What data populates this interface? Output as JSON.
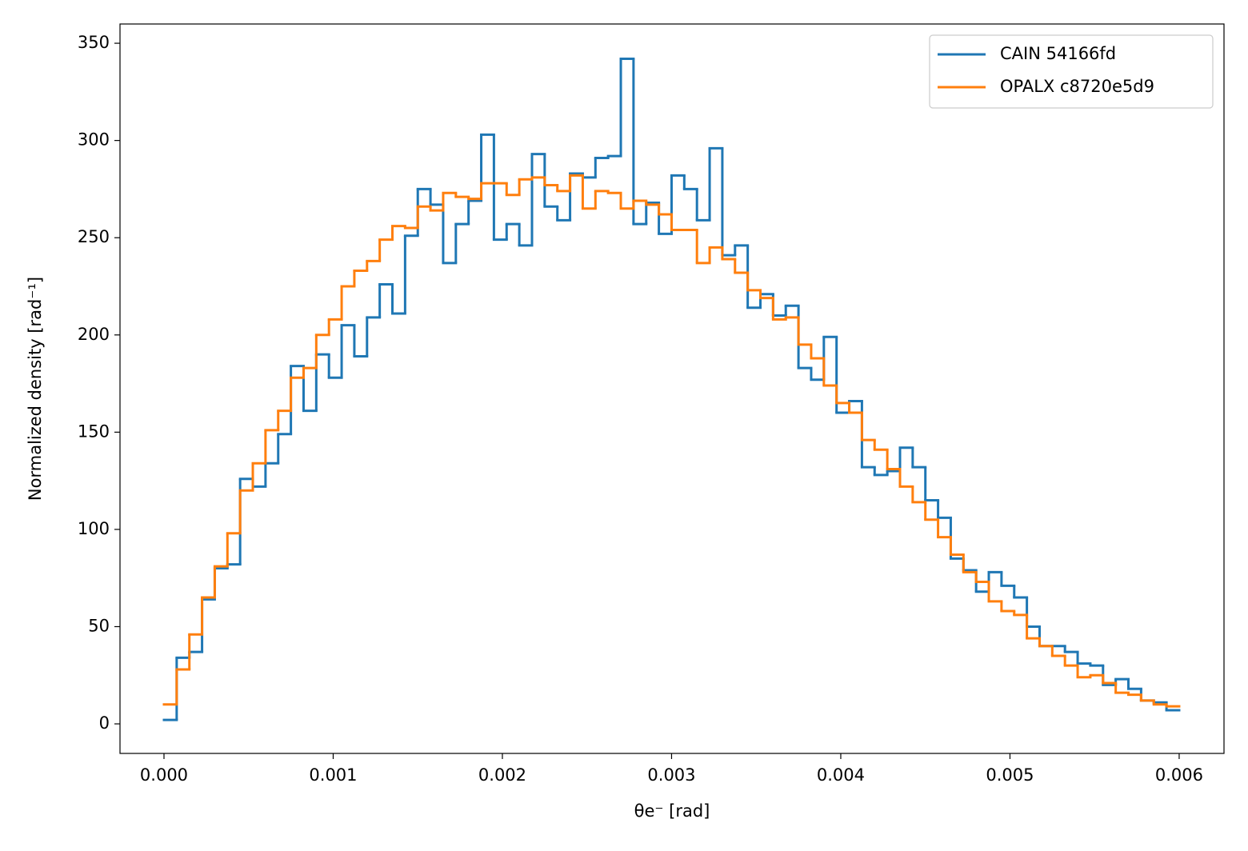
{
  "chart_data": {
    "type": "histogram",
    "x_label": "θe⁻ [rad]",
    "y_label": "Normalized density [rad⁻¹]",
    "bins": [
      0,
      7.5e-05,
      0.00015,
      0.000225,
      0.0003,
      0.000375,
      0.00045,
      0.000525,
      0.0006,
      0.000675,
      0.00075,
      0.000825,
      0.0009,
      0.000975,
      0.00105,
      0.001125,
      0.0012,
      0.001275,
      0.00135,
      0.001425,
      0.0015,
      0.001575,
      0.00165,
      0.001725,
      0.0018,
      0.001875,
      0.00195,
      0.002025,
      0.0021,
      0.002175,
      0.00225,
      0.002325,
      0.0024,
      0.002475,
      0.00255,
      0.002625,
      0.0027,
      0.002775,
      0.00285,
      0.002925,
      0.003,
      0.003075,
      0.00315,
      0.003225,
      0.0033,
      0.003375,
      0.00345,
      0.003525,
      0.0036,
      0.003675,
      0.00375,
      0.003825,
      0.0039,
      0.003975,
      0.00405,
      0.004125,
      0.0042,
      0.004275,
      0.00435,
      0.004425,
      0.0045,
      0.004575,
      0.00465,
      0.004725,
      0.0048,
      0.004875,
      0.00495,
      0.005025,
      0.0051,
      0.005175,
      0.00525,
      0.005325,
      0.0054,
      0.005475,
      0.00555,
      0.005625,
      0.0057,
      0.005775,
      0.00585,
      0.005925,
      0.006
    ],
    "series": [
      {
        "name": "CAIN 54166fd",
        "color": "#1f77b4",
        "values": [
          2,
          34,
          37,
          64,
          80,
          82,
          126,
          122,
          134,
          149,
          184,
          161,
          190,
          178,
          205,
          189,
          209,
          226,
          211,
          251,
          275,
          267,
          237,
          257,
          269,
          303,
          249,
          257,
          246,
          293,
          266,
          259,
          283,
          281,
          291,
          292,
          342,
          257,
          268,
          252,
          282,
          275,
          259,
          296,
          241,
          246,
          214,
          221,
          210,
          215,
          183,
          177,
          199,
          160,
          166,
          132,
          128,
          130,
          142,
          132,
          115,
          106,
          85,
          79,
          68,
          78,
          71,
          65,
          50,
          40,
          40,
          37,
          31,
          30,
          20,
          23,
          18,
          12,
          11,
          7
        ]
      },
      {
        "name": "OPALX c8720e5d9",
        "color": "#ff7f0e",
        "values": [
          10,
          28,
          46,
          65,
          81,
          98,
          120,
          134,
          151,
          161,
          178,
          183,
          200,
          208,
          225,
          233,
          238,
          249,
          256,
          255,
          266,
          264,
          273,
          271,
          270,
          278,
          278,
          272,
          280,
          281,
          277,
          274,
          282,
          265,
          274,
          273,
          265,
          269,
          267,
          262,
          254,
          254,
          237,
          245,
          239,
          232,
          223,
          219,
          208,
          209,
          195,
          188,
          174,
          165,
          160,
          146,
          141,
          131,
          122,
          114,
          105,
          96,
          87,
          78,
          73,
          63,
          58,
          56,
          44,
          40,
          35,
          30,
          24,
          25,
          21,
          16,
          15,
          12,
          10,
          9
        ]
      }
    ],
    "xlim": [
      -0.00026,
      0.006265
    ],
    "ylim": [
      -15.2,
      359.9
    ],
    "xticks": [
      {
        "value": 0,
        "label": "0.000"
      },
      {
        "value": 0.001,
        "label": "0.001"
      },
      {
        "value": 0.002,
        "label": "0.002"
      },
      {
        "value": 0.003,
        "label": "0.003"
      },
      {
        "value": 0.004,
        "label": "0.004"
      },
      {
        "value": 0.005,
        "label": "0.005"
      },
      {
        "value": 0.006,
        "label": "0.006"
      }
    ],
    "yticks": [
      0,
      50,
      100,
      150,
      200,
      250,
      300,
      350
    ],
    "legend": "upper right"
  }
}
